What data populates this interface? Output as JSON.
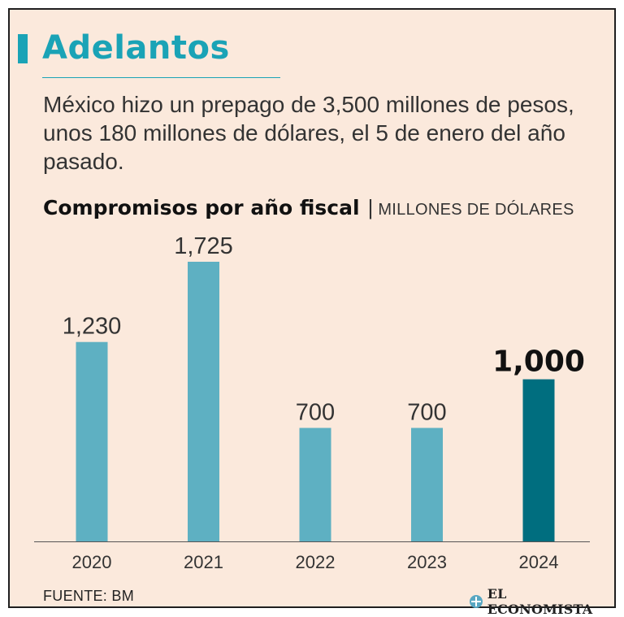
{
  "header": {
    "title": "Adelantos",
    "subtitle": "México hizo un prepago de 3,500 millones de pesos, unos 180 millones de dólares, el 5 de enero del año pasado."
  },
  "chart_head": {
    "title": "Compromisos por año fiscal",
    "separator": "|",
    "unit": "MILLONES DE DÓLARES"
  },
  "chart_data": {
    "type": "bar",
    "title": "Compromisos por año fiscal",
    "unit": "MILLONES DE DÓLARES",
    "categories": [
      "2020",
      "2021",
      "2022",
      "2023",
      "2024"
    ],
    "values": [
      1230,
      1725,
      700,
      700,
      1000
    ],
    "value_labels": [
      "1,230",
      "1,725",
      "700",
      "700",
      "1,000"
    ],
    "highlight_index": 4,
    "ylim": [
      0,
      1725
    ],
    "grid": false,
    "colors": {
      "bar": "#5eb0c2",
      "highlight": "#006e7f",
      "axis": "#555555"
    }
  },
  "footer": {
    "source": "FUENTE:  BM",
    "logo_text": "EL ECONOMISTA"
  }
}
